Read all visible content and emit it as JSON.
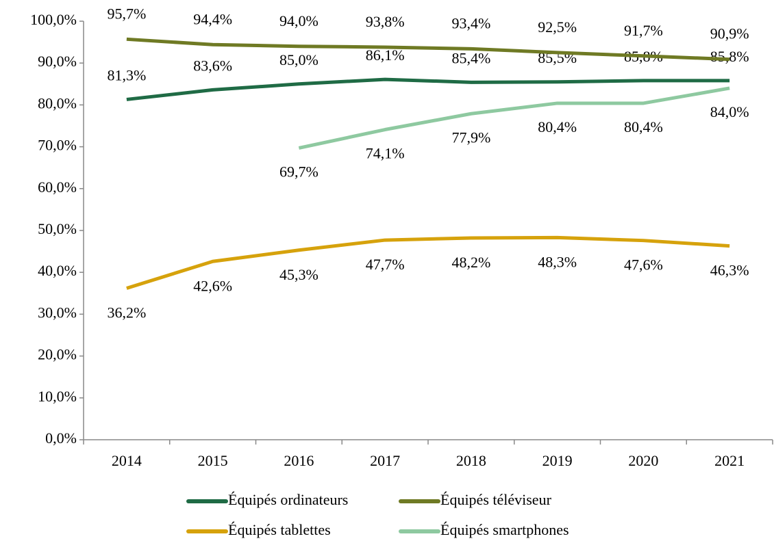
{
  "chart_data": {
    "type": "line",
    "categories": [
      "2014",
      "2015",
      "2016",
      "2017",
      "2018",
      "2019",
      "2020",
      "2021"
    ],
    "series": [
      {
        "name": "Équipés ordinateurs",
        "color": "#1f6b45",
        "values": [
          81.3,
          83.6,
          85.0,
          86.1,
          85.4,
          85.5,
          85.8,
          85.8
        ],
        "value_labels": [
          "81,3%",
          "83,6%",
          "85,0%",
          "86,1%",
          "85,4%",
          "85,5%",
          "85,8%",
          "85,8%"
        ]
      },
      {
        "name": "Équipés téléviseur",
        "color": "#6f7a24",
        "values": [
          95.7,
          94.4,
          94.0,
          93.8,
          93.4,
          92.5,
          91.7,
          90.9
        ],
        "value_labels": [
          "95,7%",
          "94,4%",
          "94,0%",
          "93,8%",
          "93,4%",
          "92,5%",
          "91,7%",
          "90,9%"
        ]
      },
      {
        "name": "Équipés tablettes",
        "color": "#d6a20c",
        "values": [
          36.2,
          42.6,
          45.3,
          47.7,
          48.2,
          48.3,
          47.6,
          46.3
        ],
        "value_labels": [
          "36,2%",
          "42,6%",
          "45,3%",
          "47,7%",
          "48,2%",
          "48,3%",
          "47,6%",
          "46,3%"
        ]
      },
      {
        "name": "Équipés smartphones",
        "color": "#8ec9a0",
        "values": [
          null,
          null,
          69.7,
          74.1,
          77.9,
          80.4,
          80.4,
          84.0
        ],
        "value_labels": [
          null,
          null,
          "69,7%",
          "74,1%",
          "77,9%",
          "80,4%",
          "80,4%",
          "84,0%"
        ]
      }
    ],
    "ylim": [
      0,
      100
    ],
    "yticks": [
      {
        "value": 0,
        "label": "0,0%"
      },
      {
        "value": 10,
        "label": "10,0%"
      },
      {
        "value": 20,
        "label": "20,0%"
      },
      {
        "value": 30,
        "label": "30,0%"
      },
      {
        "value": 40,
        "label": "40,0%"
      },
      {
        "value": 50,
        "label": "50,0%"
      },
      {
        "value": 60,
        "label": "60,0%"
      },
      {
        "value": 70,
        "label": "70,0%"
      },
      {
        "value": 80,
        "label": "80,0%"
      },
      {
        "value": 90,
        "label": "90,0%"
      },
      {
        "value": 100,
        "label": "100,0%"
      }
    ],
    "grid": false
  }
}
